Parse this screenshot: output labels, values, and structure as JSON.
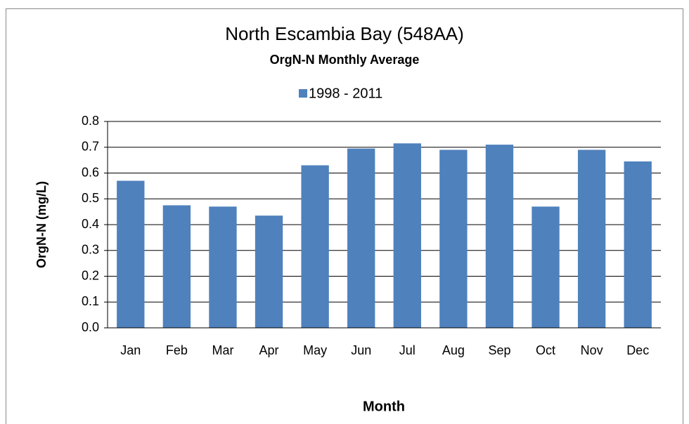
{
  "chart_data": {
    "type": "bar",
    "title": "North Escambia Bay (548AA)",
    "subtitle": "OrgN-N Monthly Average",
    "x_label": "Month",
    "y_label": "OrgN-N (mg/L)",
    "categories": [
      "Jan",
      "Feb",
      "Mar",
      "Apr",
      "May",
      "Jun",
      "Jul",
      "Aug",
      "Sep",
      "Oct",
      "Nov",
      "Dec"
    ],
    "series": [
      {
        "name": "1998 - 2011",
        "color": "#4f81bd",
        "values": [
          0.57,
          0.475,
          0.47,
          0.435,
          0.63,
          0.695,
          0.715,
          0.69,
          0.71,
          0.47,
          0.69,
          0.645
        ]
      }
    ],
    "ylim": [
      0,
      0.8
    ],
    "yticks": [
      {
        "value": 0,
        "label": "0.0"
      },
      0.1,
      0.2,
      0.3,
      0.4,
      0.5,
      0.6,
      0.7,
      0.8
    ],
    "grid": true,
    "legend": "top"
  }
}
